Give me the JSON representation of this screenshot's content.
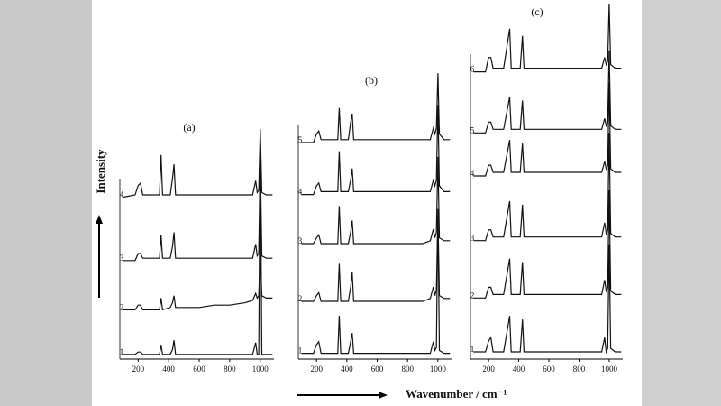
{
  "y_label": "Intensity",
  "x_label": "Wavenumber / cm⁻¹",
  "chart_data": [
    {
      "type": "line",
      "title": "(a)",
      "xlim": [
        80,
        1090
      ],
      "ylim": [
        0,
        100
      ],
      "xticks": [
        200,
        400,
        600,
        800,
        1000
      ],
      "color": "#111111",
      "x": [
        100,
        180,
        200,
        215,
        230,
        300,
        340,
        350,
        360,
        410,
        425,
        435,
        445,
        500,
        600,
        700,
        800,
        900,
        950,
        970,
        980,
        990,
        1000,
        1010,
        1040,
        1080
      ],
      "series": [
        {
          "name": "1",
          "values": [
            2,
            2,
            3,
            3,
            2,
            2,
            2,
            6,
            2,
            2,
            4,
            8,
            2,
            2,
            2,
            2,
            2,
            2,
            2,
            7,
            2,
            2,
            94,
            2,
            2,
            2
          ]
        },
        {
          "name": "2",
          "values": [
            21,
            21,
            23,
            23,
            21,
            21,
            21,
            26,
            21,
            22,
            24,
            27,
            22,
            22,
            22,
            23,
            23,
            24,
            25,
            28,
            26,
            27,
            45,
            27,
            26,
            26
          ]
        },
        {
          "name": "3",
          "values": [
            42,
            42,
            45,
            45,
            43,
            43,
            43,
            53,
            43,
            43,
            48,
            54,
            43,
            43,
            43,
            43,
            43,
            43,
            43,
            49,
            44,
            45,
            86,
            44,
            43,
            43
          ]
        },
        {
          "name": "4",
          "values": [
            69,
            70,
            74,
            75,
            70,
            70,
            70,
            87,
            70,
            70,
            77,
            83,
            70,
            70,
            70,
            70,
            70,
            70,
            70,
            76,
            71,
            72,
            98,
            71,
            70,
            70
          ]
        }
      ]
    },
    {
      "type": "line",
      "title": "(b)",
      "xlim": [
        80,
        1090
      ],
      "ylim": [
        0,
        100
      ],
      "xticks": [
        200,
        400,
        600,
        800,
        1000
      ],
      "color": "#111111",
      "x": [
        100,
        180,
        200,
        215,
        230,
        300,
        340,
        350,
        360,
        410,
        425,
        435,
        445,
        500,
        600,
        700,
        800,
        900,
        950,
        970,
        980,
        990,
        1000,
        1010,
        1040,
        1080
      ],
      "series": [
        {
          "name": "1",
          "values": [
            2,
            2,
            5,
            6,
            2,
            2,
            2,
            15,
            2,
            2,
            6,
            9,
            2,
            2,
            2,
            2,
            2,
            2,
            2,
            6,
            3,
            4,
            52,
            3,
            2,
            2
          ]
        },
        {
          "name": "2",
          "values": [
            20,
            20,
            22,
            23,
            20,
            20,
            20,
            33,
            20,
            20,
            25,
            30,
            20,
            20,
            20,
            20,
            20,
            20,
            21,
            25,
            22,
            24,
            50,
            22,
            21,
            21
          ]
        },
        {
          "name": "3",
          "values": [
            40,
            40,
            42,
            43,
            40,
            40,
            40,
            53,
            40,
            40,
            44,
            48,
            40,
            40,
            40,
            40,
            40,
            40,
            41,
            45,
            42,
            44,
            70,
            42,
            41,
            41
          ]
        },
        {
          "name": "4",
          "values": [
            57,
            57,
            60,
            61,
            58,
            58,
            58,
            72,
            58,
            58,
            62,
            66,
            58,
            58,
            58,
            58,
            58,
            58,
            58,
            62,
            60,
            62,
            88,
            60,
            58,
            58
          ]
        },
        {
          "name": "5",
          "values": [
            75,
            75,
            78,
            79,
            76,
            76,
            76,
            87,
            76,
            76,
            82,
            85,
            76,
            76,
            76,
            76,
            76,
            76,
            76,
            80,
            78,
            80,
            99,
            78,
            76,
            76
          ]
        }
      ]
    },
    {
      "type": "line",
      "title": "(c)",
      "xlim": [
        80,
        1090
      ],
      "ylim": [
        0,
        100
      ],
      "xticks": [
        200,
        400,
        600,
        800,
        1000
      ],
      "color": "#111111",
      "x": [
        100,
        180,
        200,
        215,
        230,
        300,
        340,
        350,
        360,
        410,
        425,
        435,
        445,
        500,
        600,
        700,
        800,
        900,
        950,
        970,
        980,
        990,
        1000,
        1010,
        1040,
        1080
      ],
      "series": [
        {
          "name": "1",
          "values": [
            2,
            2,
            5,
            6,
            2,
            2,
            12,
            2,
            2,
            2,
            11,
            2,
            2,
            2,
            2,
            2,
            2,
            2,
            2,
            6,
            2,
            3,
            32,
            3,
            2,
            2
          ]
        },
        {
          "name": "2",
          "values": [
            17,
            17,
            20,
            20,
            18,
            18,
            28,
            18,
            18,
            18,
            27,
            18,
            18,
            18,
            18,
            18,
            18,
            18,
            18,
            22,
            19,
            20,
            47,
            19,
            18,
            18
          ]
        },
        {
          "name": "3",
          "values": [
            33,
            33,
            36,
            36,
            34,
            34,
            44,
            34,
            34,
            34,
            43,
            34,
            34,
            34,
            34,
            34,
            34,
            34,
            34,
            38,
            35,
            36,
            63,
            35,
            34,
            34
          ]
        },
        {
          "name": "4",
          "values": [
            51,
            51,
            54,
            54,
            52,
            52,
            61,
            52,
            52,
            52,
            60,
            52,
            52,
            52,
            52,
            52,
            52,
            52,
            52,
            55,
            53,
            54,
            77,
            53,
            52,
            52
          ]
        },
        {
          "name": "5",
          "values": [
            63,
            63,
            66,
            66,
            64,
            64,
            73,
            64,
            64,
            64,
            72,
            64,
            64,
            64,
            64,
            64,
            64,
            64,
            64,
            67,
            65,
            66,
            86,
            65,
            64,
            64
          ]
        },
        {
          "name": "6",
          "values": [
            80,
            80,
            84,
            84,
            81,
            81,
            92,
            81,
            81,
            81,
            90,
            81,
            81,
            81,
            81,
            81,
            81,
            81,
            81,
            84,
            82,
            83,
            99,
            82,
            81,
            81
          ]
        }
      ]
    }
  ]
}
